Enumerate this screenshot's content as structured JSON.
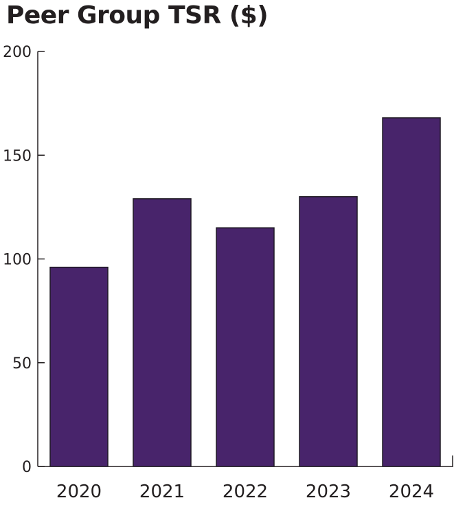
{
  "colors": {
    "bar_fill": "#48246b",
    "bar_stroke": "#1f1a24",
    "axis": "#231f20",
    "text": "#231f20",
    "background": "#ffffff"
  },
  "chart_data": {
    "type": "bar",
    "title": "Peer Group TSR ($)",
    "xlabel": "",
    "ylabel": "",
    "categories": [
      "2020",
      "2021",
      "2022",
      "2023",
      "2024"
    ],
    "values": [
      96,
      129,
      115,
      130,
      168
    ],
    "ylim": [
      0,
      200
    ],
    "yticks": [
      0,
      50,
      100,
      150,
      200
    ],
    "grid": false,
    "legend": "none"
  }
}
